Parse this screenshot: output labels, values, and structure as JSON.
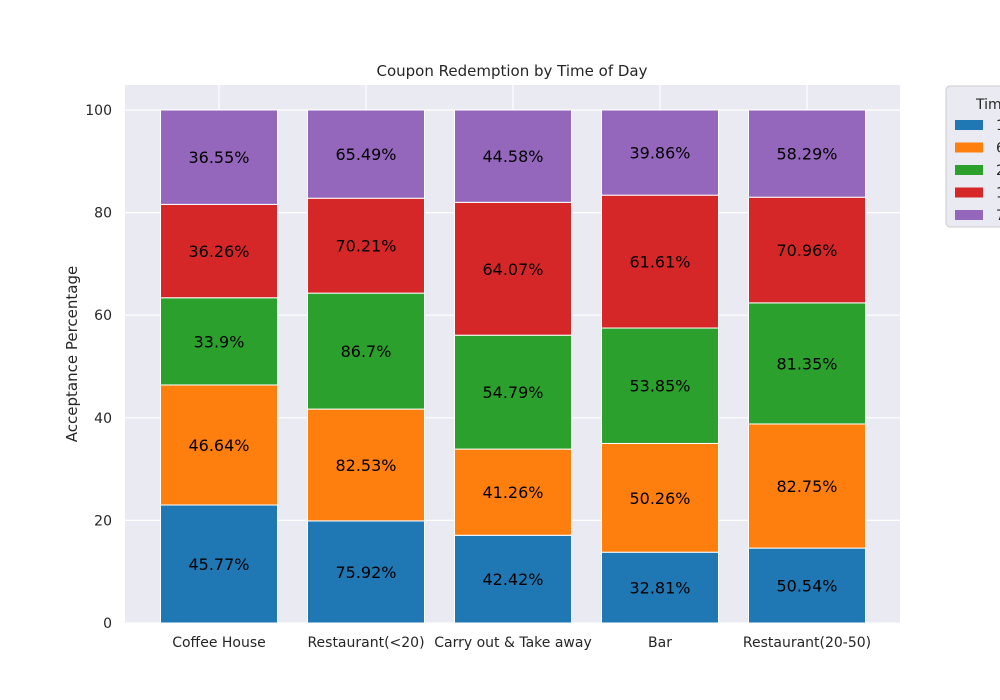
{
  "chart_data": {
    "type": "bar",
    "stacked": true,
    "normalized": true,
    "title": "Coupon Redemption by Time of Day",
    "xlabel": "",
    "ylabel": "Acceptance Percentage",
    "ylim": [
      0,
      100
    ],
    "yticks": [
      0,
      20,
      40,
      60,
      80,
      100
    ],
    "grid": true,
    "legend_title": "Tim",
    "legend_placement": "outside top-right (clipped)",
    "categories": [
      "Coffee House",
      "Restaurant(<20)",
      "Carry out & Take away",
      "Bar",
      "Restaurant(20-50)"
    ],
    "series": [
      {
        "legend_label": "1",
        "color": "#1f77b4",
        "values": [
          23.0,
          19.9,
          17.1,
          13.8,
          14.6
        ],
        "labels": [
          "45.77%",
          "75.92%",
          "42.42%",
          "32.81%",
          "50.54%"
        ]
      },
      {
        "legend_label": "6",
        "color": "#ff7f0e",
        "values": [
          23.4,
          21.8,
          16.8,
          21.2,
          24.2
        ],
        "labels": [
          "46.64%",
          "82.53%",
          "41.26%",
          "50.26%",
          "82.75%"
        ]
      },
      {
        "legend_label": "2",
        "color": "#2ca02c",
        "values": [
          17.0,
          22.6,
          22.2,
          22.5,
          23.6
        ],
        "labels": [
          "33.9%",
          "86.7%",
          "54.79%",
          "53.85%",
          "81.35%"
        ]
      },
      {
        "legend_label": "1",
        "color": "#d62728",
        "values": [
          18.2,
          18.5,
          25.9,
          25.9,
          20.6
        ],
        "labels": [
          "36.26%",
          "70.21%",
          "64.07%",
          "61.61%",
          "70.96%"
        ]
      },
      {
        "legend_label": "7",
        "color": "#9467bd",
        "values": [
          18.4,
          17.2,
          18.0,
          16.6,
          17.0
        ],
        "labels": [
          "36.55%",
          "65.49%",
          "44.58%",
          "39.86%",
          "58.29%"
        ]
      }
    ]
  }
}
